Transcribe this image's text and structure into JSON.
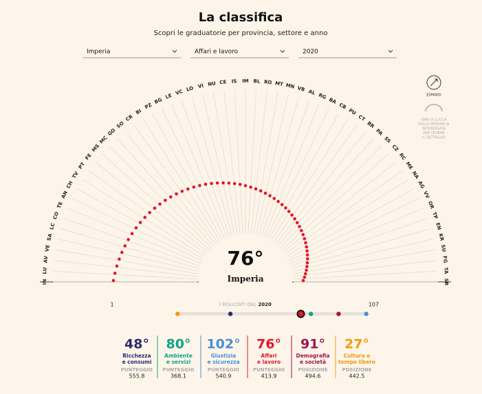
{
  "header": {
    "title": "La classifica",
    "subtitle": "Scopri le graduatorie per provincia, settore e anno"
  },
  "filters": [
    "Imperia",
    "Affari e lavoro",
    "2020"
  ],
  "provinces": [
    "IN",
    "LU",
    "AV",
    "VE",
    "SA",
    "LC",
    "CO",
    "TE",
    "AN",
    "CH",
    "TV",
    "PT",
    "FE",
    "MS",
    "MC",
    "GO",
    "SO",
    "CR",
    "BI",
    "PZ",
    "BG",
    "LE",
    "VC",
    "LO",
    "VI",
    "NU",
    "CE",
    "IS",
    "IM",
    "BL",
    "RO",
    "MT",
    "MN",
    "VB",
    "AL",
    "RG",
    "BA",
    "CB",
    "PU",
    "CT",
    "BR",
    "PA",
    "SS",
    "CZ",
    "RC",
    "ME",
    "NA",
    "AG",
    "VV",
    "OR",
    "TP",
    "EN",
    "KR",
    "SU",
    "FG",
    "TA",
    "SR"
  ],
  "expand": "ESPANDI",
  "hint": [
    "GIRA O CLICCA",
    "SULLA PROVINCIA",
    "INTERESSATA",
    "PER VEDERE",
    "IL DETTAGLIO"
  ],
  "selected": "Imperia",
  "slider": {
    "min": 1,
    "max": 107,
    "label": "I RISULTATI DEL",
    "year": "2020"
  },
  "cards": [
    {
      "rank": {
        "value": 48,
        "label": "48°"
      },
      "name": [
        "Ricchezza",
        "e consumi"
      ],
      "metric": "PUNTEGGIO",
      "score": "555.8",
      "color": "#2b2c6f"
    },
    {
      "rank": {
        "value": 80,
        "label": "80°"
      },
      "name": [
        "Ambiente",
        "e servizi"
      ],
      "metric": "PUNTEGGIO",
      "score": "368.1",
      "color": "#12a385"
    },
    {
      "rank": {
        "value": 102,
        "label": "102°"
      },
      "name": [
        "Giustizia",
        "e sicurezza"
      ],
      "metric": "PUNTEGGIO",
      "score": "540.9",
      "color": "#4a8fd8"
    },
    {
      "rank": {
        "value": 76,
        "label": "76°"
      },
      "name": [
        "Affari",
        "e lavoro"
      ],
      "metric": "PUNTEGGIO",
      "score": "413.9",
      "color": "#e3162b"
    },
    {
      "rank": {
        "value": 91,
        "label": "91°"
      },
      "name": [
        "Demografia",
        "e società"
      ],
      "metric": "POSIZIONE",
      "score": "494.6",
      "color": "#a0144f"
    },
    {
      "rank": {
        "value": 27,
        "label": "27°"
      },
      "name": [
        "Cultura e",
        "tempo libero"
      ],
      "metric": "POSIZIONE",
      "score": "442.5",
      "color": "#f39a12"
    }
  ]
}
